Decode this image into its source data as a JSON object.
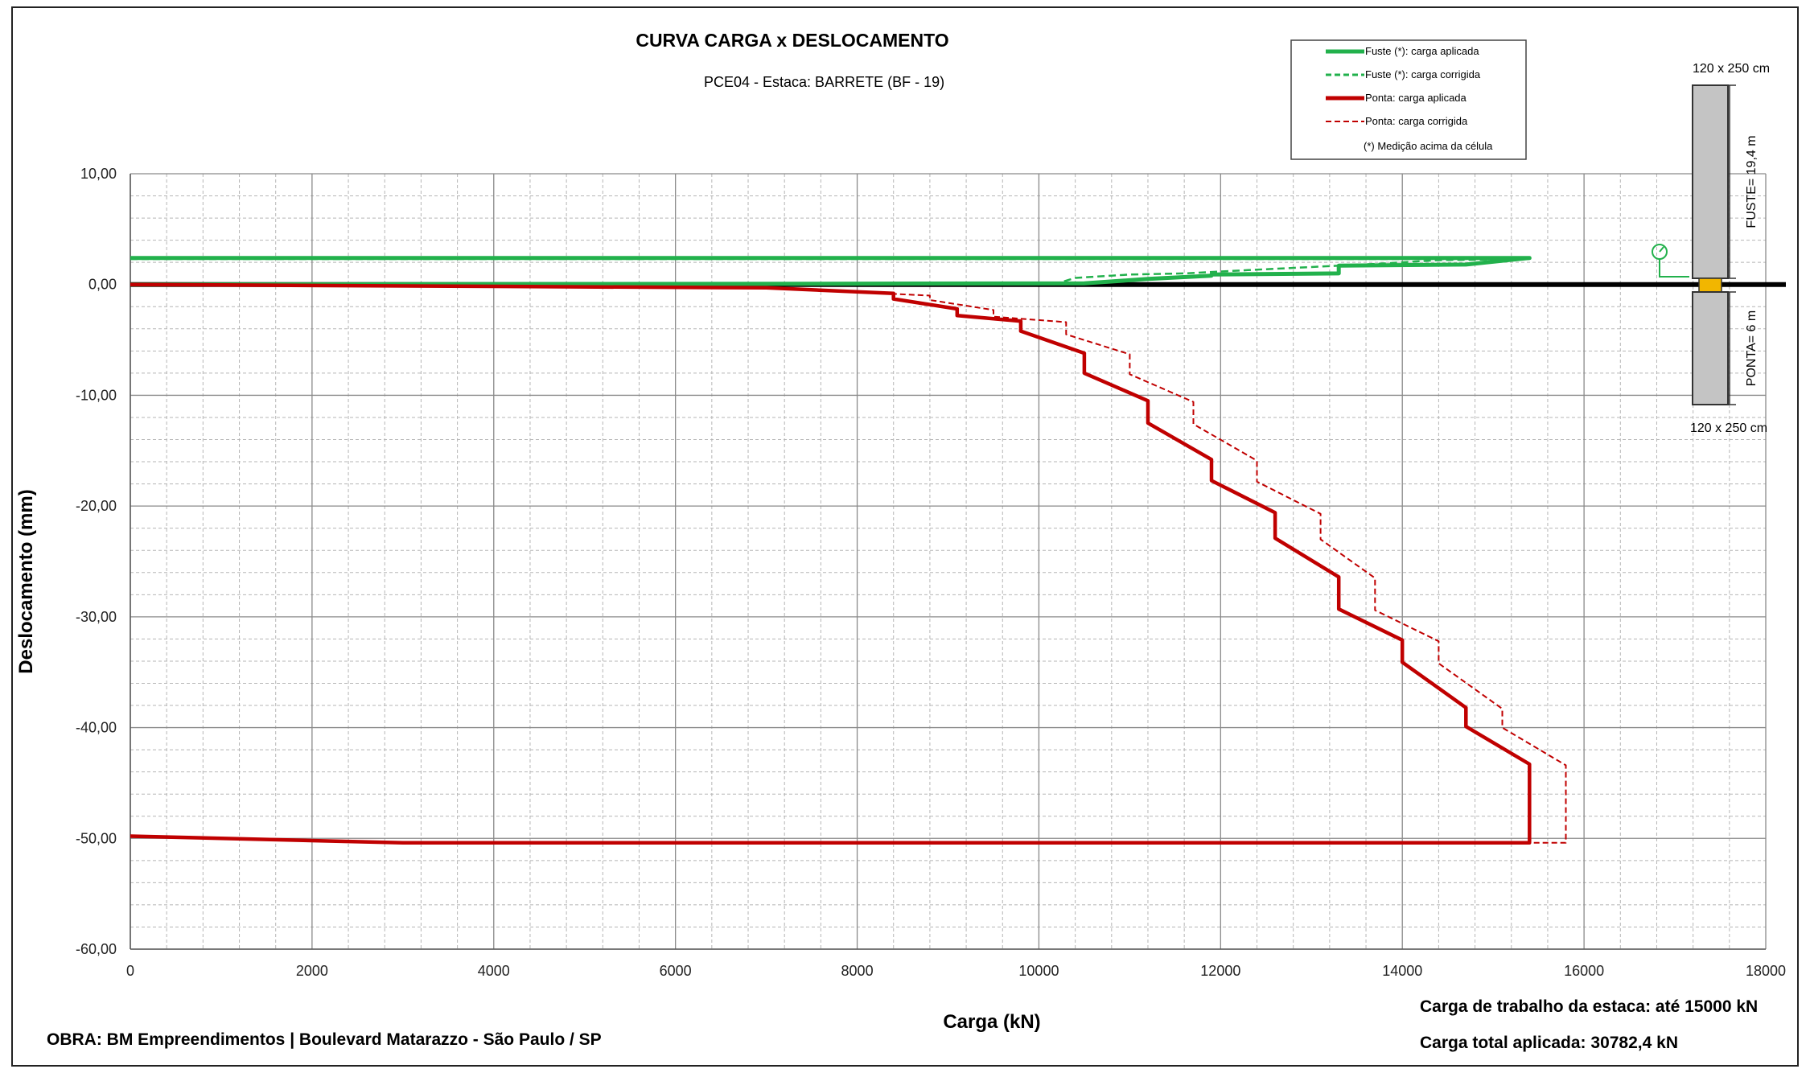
{
  "chart_data": {
    "type": "line",
    "title": "CURVA CARGA x DESLOCAMENTO",
    "subtitle": "PCE04 - Estaca: BARRETE (BF - 19)",
    "xlabel": "Carga (kN)",
    "ylabel": "Deslocamento (mm)",
    "xlim": [
      0,
      18000
    ],
    "ylim": [
      -60,
      10
    ],
    "x_ticks": [
      "0",
      "2000",
      "4000",
      "6000",
      "8000",
      "10000",
      "12000",
      "14000",
      "16000",
      "18000"
    ],
    "y_ticks": [
      "10,00",
      "0,00",
      "-10,00",
      "-20,00",
      "-30,00",
      "-40,00",
      "-50,00",
      "-60,00"
    ],
    "grid": true,
    "legend_position": "top-right",
    "series": [
      {
        "name": "Fuste (*): carga aplicada",
        "color": "#22b14c",
        "style": "solid",
        "points": [
          [
            0,
            2.4
          ],
          [
            15400,
            2.4
          ],
          [
            14700,
            1.8
          ],
          [
            13300,
            1.7
          ],
          [
            13300,
            1.0
          ],
          [
            11900,
            0.9
          ],
          [
            11900,
            0.8
          ],
          [
            11200,
            0.5
          ],
          [
            10500,
            0.1
          ],
          [
            0,
            0.0
          ]
        ]
      },
      {
        "name": "Fuste (*): carga corrigida",
        "color": "#22b14c",
        "style": "dashed",
        "points": [
          [
            0,
            2.3
          ],
          [
            15400,
            2.3
          ],
          [
            14400,
            2.2
          ],
          [
            13800,
            1.9
          ],
          [
            13300,
            1.7
          ],
          [
            12300,
            1.3
          ],
          [
            11600,
            1.0
          ],
          [
            11000,
            0.9
          ],
          [
            10800,
            0.8
          ],
          [
            10400,
            0.6
          ],
          [
            10200,
            0.1
          ],
          [
            0,
            0.0
          ]
        ]
      },
      {
        "name": "Ponta: carga aplicada",
        "color": "#c00000",
        "style": "solid",
        "points": [
          [
            0,
            0.0
          ],
          [
            7000,
            -0.3
          ],
          [
            8400,
            -0.8
          ],
          [
            8400,
            -1.3
          ],
          [
            9100,
            -2.2
          ],
          [
            9100,
            -2.8
          ],
          [
            9800,
            -3.3
          ],
          [
            9800,
            -4.2
          ],
          [
            10500,
            -6.2
          ],
          [
            10500,
            -8.0
          ],
          [
            11200,
            -10.5
          ],
          [
            11200,
            -12.5
          ],
          [
            11900,
            -15.8
          ],
          [
            11900,
            -17.7
          ],
          [
            12600,
            -20.6
          ],
          [
            12600,
            -22.9
          ],
          [
            13300,
            -26.4
          ],
          [
            13300,
            -29.3
          ],
          [
            14000,
            -32.1
          ],
          [
            14000,
            -34.1
          ],
          [
            14700,
            -38.2
          ],
          [
            14700,
            -39.9
          ],
          [
            15400,
            -43.3
          ],
          [
            15400,
            -50.4
          ],
          [
            3000,
            -50.4
          ],
          [
            0,
            -49.8
          ]
        ]
      },
      {
        "name": "Ponta: carga corrigida",
        "color": "#c00000",
        "style": "dashed",
        "points": [
          [
            0,
            0.0
          ],
          [
            7000,
            -0.3
          ],
          [
            8800,
            -1.0
          ],
          [
            8800,
            -1.4
          ],
          [
            9500,
            -2.3
          ],
          [
            9500,
            -2.9
          ],
          [
            10300,
            -3.4
          ],
          [
            10300,
            -4.5
          ],
          [
            11000,
            -6.3
          ],
          [
            11000,
            -8.1
          ],
          [
            11700,
            -10.6
          ],
          [
            11700,
            -12.6
          ],
          [
            12400,
            -15.9
          ],
          [
            12400,
            -17.8
          ],
          [
            13100,
            -20.7
          ],
          [
            13100,
            -23.0
          ],
          [
            13700,
            -26.5
          ],
          [
            13700,
            -29.4
          ],
          [
            14400,
            -32.2
          ],
          [
            14400,
            -34.2
          ],
          [
            15100,
            -38.3
          ],
          [
            15100,
            -40.0
          ],
          [
            15800,
            -43.4
          ],
          [
            15800,
            -50.4
          ],
          [
            15400,
            -50.4
          ]
        ]
      }
    ]
  },
  "legend": {
    "items": [
      "Fuste (*): carga aplicada",
      "Fuste (*): carga corrigida",
      "Ponta: carga aplicada",
      "Ponta: carga corrigida"
    ],
    "note": "(*) Medição acima da célula"
  },
  "pile_diagram": {
    "top_dim": "120 x 250 cm",
    "shaft_label": "FUSTE= 19,4 m",
    "tip_label": "PONTA= 6 m",
    "bottom_dim": "120 x 250 cm"
  },
  "footer": {
    "obra": "OBRA: BM Empreendimentos | Boulevard Matarazzo - São Paulo / SP",
    "carga_trabalho": "Carga de trabalho da estaca: até 15000 kN",
    "carga_total": "Carga total aplicada: 30782,4 kN"
  }
}
